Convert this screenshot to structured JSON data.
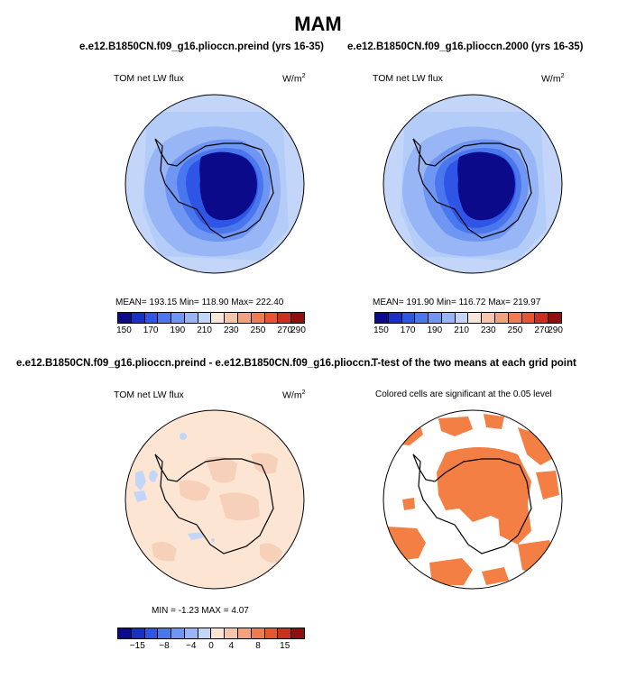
{
  "title": "MAM",
  "top_left": {
    "case_title": "e.e12.B1850CN.f09_g16.plioccn.preind (yrs 16-35)",
    "variable": "TOM net LW flux",
    "units": "W/m",
    "units_exp": "2",
    "stats": "MEAN=  193.15    Min=  118.90    Max=  222.40"
  },
  "top_right": {
    "case_title": "e.e12.B1850CN.f09_g16.plioccn.2000 (yrs 16-35)",
    "variable": "TOM net LW flux",
    "units": "W/m",
    "units_exp": "2",
    "stats": "MEAN=  191.90    Min=  116.72    Max=  219.97"
  },
  "bottom_left": {
    "case_title": "e.e12.B1850CN.f09_g16.plioccn.preind - e.e12.B1850CN.f09_g16.plioccn.2000",
    "variable": "TOM net LW flux",
    "units": "W/m",
    "units_exp": "2",
    "stats": "MIN =   -1.23  MAX =    4.07"
  },
  "bottom_right": {
    "case_title": "T-test of the two means at each grid point",
    "note": "Colored cells are significant at the 0.05 level"
  },
  "abs_colorbar": {
    "colors": [
      "#0a0a8a",
      "#1a2fc4",
      "#2f55e6",
      "#4a76ee",
      "#6f96f2",
      "#98b6f6",
      "#c3d6fa",
      "#f9e6da",
      "#f6c6ac",
      "#f3a27e",
      "#ef7c50",
      "#e85530",
      "#cc2f1c",
      "#8f0f0f"
    ],
    "labels": [
      "150",
      "170",
      "190",
      "210",
      "230",
      "250",
      "270",
      "290"
    ]
  },
  "diff_colorbar": {
    "colors": [
      "#0a0a8a",
      "#1a2fc4",
      "#2f55e6",
      "#4a76ee",
      "#6f96f2",
      "#98b6f6",
      "#c3d6fa",
      "#fde5d4",
      "#f6c6ac",
      "#f3a27e",
      "#ef7c50",
      "#e85530",
      "#cc2f1c",
      "#8f0f0f"
    ],
    "labels": [
      "−15",
      "−8",
      "−4",
      "0",
      "4",
      "8",
      "15"
    ]
  }
}
